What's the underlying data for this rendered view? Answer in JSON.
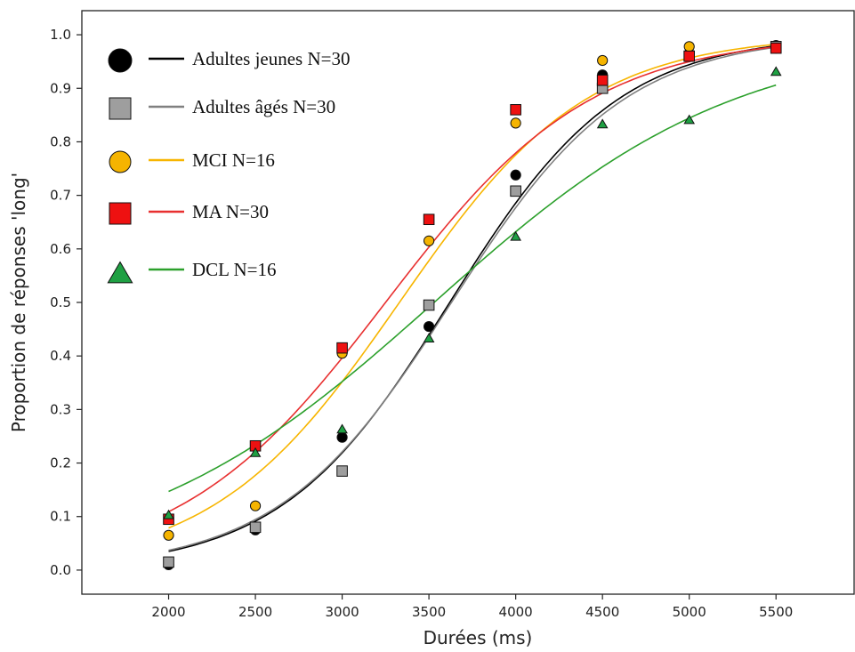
{
  "chart_data": {
    "type": "scatter",
    "xlabel": "Durées (ms)",
    "ylabel": "Proportion de réponses 'long'",
    "xlim": [
      1500,
      5950
    ],
    "ylim": [
      -0.045,
      1.045
    ],
    "xticks": [
      2000,
      2500,
      3000,
      3500,
      4000,
      4500,
      5000,
      5500
    ],
    "yticks": [
      0.0,
      0.1,
      0.2,
      0.3,
      0.4,
      0.5,
      0.6,
      0.7,
      0.8,
      0.9,
      1.0
    ],
    "grid": false,
    "legend_position": "top-left",
    "x": [
      2000,
      2500,
      3000,
      3500,
      4000,
      4500,
      5000,
      5500
    ],
    "series": [
      {
        "name": "Adultes jeunes N=30",
        "marker": "circle",
        "color": "#000000",
        "line_color": "#000000",
        "values": [
          0.01,
          0.075,
          0.248,
          0.455,
          0.738,
          0.925,
          0.965,
          0.98
        ],
        "fit": {
          "midpoint": 3620,
          "slope": 0.00205
        }
      },
      {
        "name": "Adultes âgés N=30",
        "marker": "square",
        "color": "#9e9e9e",
        "line_color": "#808080",
        "values": [
          0.015,
          0.08,
          0.185,
          0.495,
          0.708,
          0.9,
          0.96,
          0.978
        ],
        "fit": {
          "midpoint": 3630,
          "slope": 0.002
        }
      },
      {
        "name": "MCI N=16",
        "marker": "circle",
        "color": "#f5b400",
        "line_color": "#f7b500",
        "values": [
          0.065,
          0.12,
          0.405,
          0.615,
          0.835,
          0.952,
          0.978,
          0.975
        ],
        "fit": {
          "midpoint": 3330,
          "slope": 0.00185
        }
      },
      {
        "name": "MA  N=30",
        "marker": "square",
        "color": "#ee1111",
        "line_color": "#e83030",
        "values": [
          0.095,
          0.232,
          0.415,
          0.655,
          0.86,
          0.915,
          0.96,
          0.975
        ],
        "fit": {
          "midpoint": 3250,
          "slope": 0.00168
        }
      },
      {
        "name": "DCL N=16",
        "marker": "triangle",
        "color": "#1fa043",
        "line_color": "#2ca02c",
        "values": [
          0.102,
          0.218,
          0.262,
          0.432,
          0.622,
          0.832,
          0.84,
          0.93
        ],
        "fit": {
          "midpoint": 3530,
          "slope": 0.00115
        }
      }
    ]
  }
}
